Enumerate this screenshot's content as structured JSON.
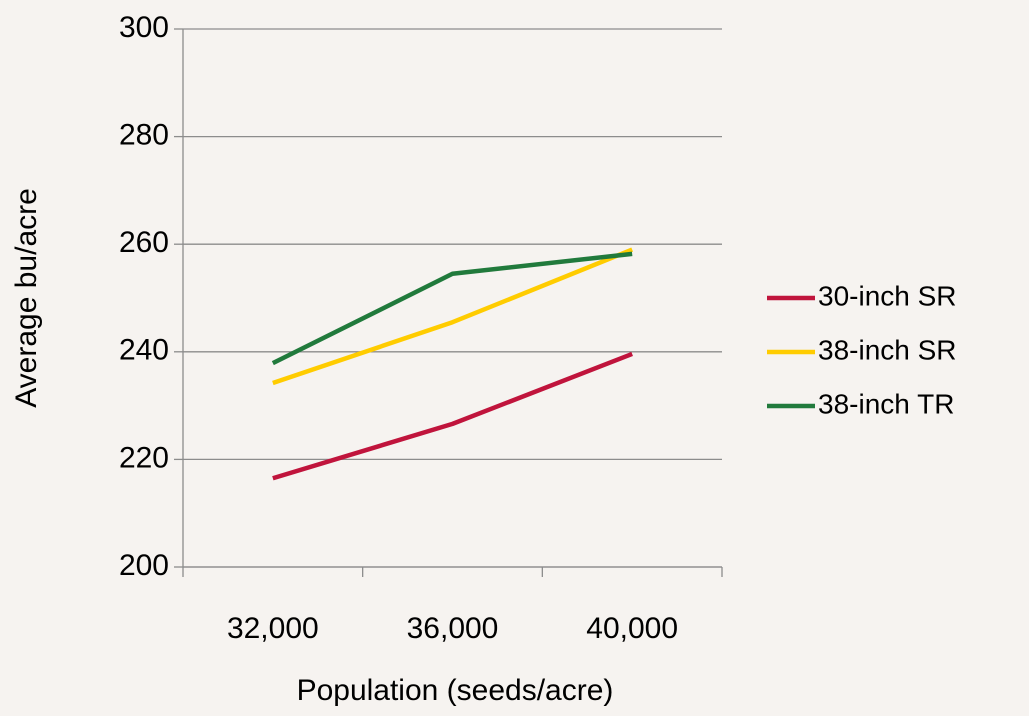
{
  "chart_data": {
    "type": "line",
    "x_label": "Population (seeds/acre)",
    "y_label": "Average bu/acre",
    "categories": [
      "32,000",
      "36,000",
      "40,000"
    ],
    "series": [
      {
        "name": "30-inch SR",
        "color": "#c0143c",
        "values": [
          216.5,
          226.6,
          239.6
        ]
      },
      {
        "name": "38-inch SR",
        "color": "#ffcc00",
        "values": [
          234.2,
          245.5,
          259.0
        ]
      },
      {
        "name": "38-inch TR",
        "color": "#217a3c",
        "values": [
          237.9,
          254.5,
          258.2
        ]
      }
    ],
    "ylim": [
      200,
      300
    ],
    "yticks": [
      200,
      220,
      240,
      260,
      280,
      300
    ],
    "grid": true,
    "legend": "right"
  }
}
